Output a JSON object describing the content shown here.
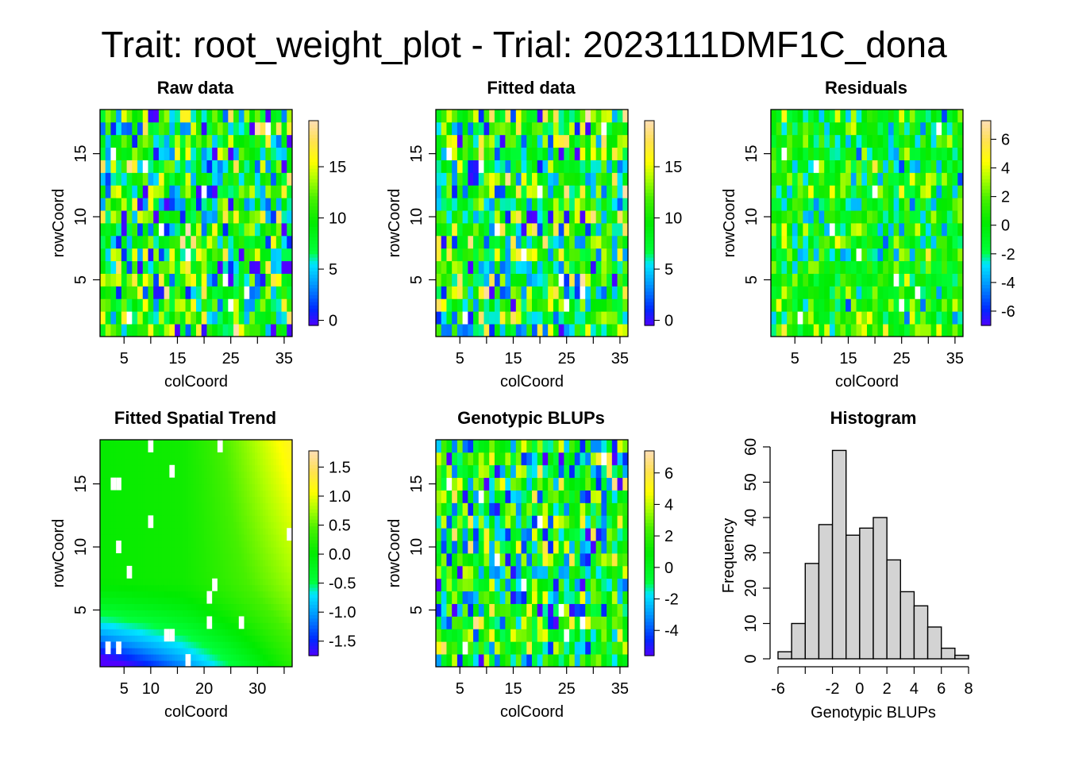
{
  "figure": {
    "title": "Trait: root_weight_plot - Trial: 2023111DMF1C_dona"
  },
  "chart_data": [
    {
      "type": "heatmap",
      "title": "Raw data",
      "xlabel": "colCoord",
      "ylabel": "rowCoord",
      "x_ticks": [
        "5",
        "15",
        "25",
        "35"
      ],
      "y_ticks": [
        "5",
        "10",
        "15"
      ],
      "xlim": [
        0.5,
        36.5
      ],
      "ylim": [
        0.5,
        18.5
      ],
      "colorbar_ticks": [
        "0",
        "5",
        "10",
        "15"
      ],
      "colorbar_range": [
        -0.5,
        19.5
      ],
      "ncols": 36,
      "nrows": 18,
      "missing_cells": [
        [
          3,
          15
        ],
        [
          17,
          7
        ],
        [
          20,
          12
        ],
        [
          28,
          4
        ],
        [
          32,
          17
        ],
        [
          12,
          9
        ],
        [
          6,
          2
        ],
        [
          24,
          5
        ],
        [
          25,
          3
        ],
        [
          9,
          14
        ]
      ]
    },
    {
      "type": "heatmap",
      "title": "Fitted data",
      "xlabel": "colCoord",
      "ylabel": "rowCoord",
      "x_ticks": [
        "5",
        "15",
        "25",
        "35"
      ],
      "y_ticks": [
        "5",
        "10",
        "15"
      ],
      "xlim": [
        0.5,
        36.5
      ],
      "ylim": [
        0.5,
        18.5
      ],
      "colorbar_ticks": [
        "0",
        "5",
        "10",
        "15"
      ],
      "colorbar_range": [
        -0.5,
        19.5
      ],
      "ncols": 36,
      "nrows": 18,
      "missing_cells": [
        [
          3,
          15
        ],
        [
          17,
          7
        ],
        [
          20,
          12
        ],
        [
          28,
          4
        ],
        [
          32,
          17
        ],
        [
          12,
          9
        ],
        [
          6,
          2
        ],
        [
          24,
          5
        ],
        [
          25,
          3
        ],
        [
          9,
          14
        ]
      ]
    },
    {
      "type": "heatmap",
      "title": "Residuals",
      "xlabel": "colCoord",
      "ylabel": "rowCoord",
      "x_ticks": [
        "5",
        "15",
        "25",
        "35"
      ],
      "y_ticks": [
        "5",
        "10",
        "15"
      ],
      "xlim": [
        0.5,
        36.5
      ],
      "ylim": [
        0.5,
        18.5
      ],
      "colorbar_ticks": [
        "-6",
        "-4",
        "-2",
        "0",
        "2",
        "4",
        "6"
      ],
      "colorbar_range": [
        -7,
        7.3
      ],
      "ncols": 36,
      "nrows": 18,
      "missing_cells": [
        [
          3,
          15
        ],
        [
          17,
          7
        ],
        [
          20,
          12
        ],
        [
          28,
          4
        ],
        [
          32,
          17
        ],
        [
          12,
          9
        ],
        [
          6,
          2
        ],
        [
          24,
          5
        ],
        [
          25,
          3
        ],
        [
          9,
          14
        ]
      ]
    },
    {
      "type": "heatmap",
      "title": "Fitted Spatial Trend",
      "xlabel": "colCoord",
      "ylabel": "rowCoord",
      "x_ticks": [
        "5",
        "10",
        "20",
        "30"
      ],
      "x_tick_values": [
        5,
        10,
        20,
        30
      ],
      "y_ticks": [
        "5",
        "10",
        "15"
      ],
      "xlim": [
        0.5,
        36.5
      ],
      "ylim": [
        0.5,
        18.5
      ],
      "colorbar_ticks": [
        "-1.5",
        "-1.0",
        "-0.5",
        "0.0",
        "0.5",
        "1.0",
        "1.5"
      ],
      "colorbar_range": [
        -1.75,
        1.78
      ],
      "missing_cells": [
        [
          3,
          15
        ],
        [
          4,
          15
        ],
        [
          10,
          18
        ],
        [
          14,
          16
        ],
        [
          10,
          12
        ],
        [
          4,
          10
        ],
        [
          6,
          8
        ],
        [
          36,
          11
        ],
        [
          22,
          7
        ],
        [
          21,
          6
        ],
        [
          2,
          2
        ],
        [
          4,
          2
        ],
        [
          13,
          3
        ],
        [
          14,
          3
        ],
        [
          17,
          1
        ],
        [
          27,
          4
        ],
        [
          21,
          4
        ],
        [
          23,
          18
        ]
      ]
    },
    {
      "type": "heatmap",
      "title": "Genotypic BLUPs",
      "xlabel": "colCoord",
      "ylabel": "rowCoord",
      "x_ticks": [
        "5",
        "15",
        "25",
        "35"
      ],
      "y_ticks": [
        "5",
        "10",
        "15"
      ],
      "xlim": [
        0.5,
        36.5
      ],
      "ylim": [
        0.5,
        18.5
      ],
      "colorbar_ticks": [
        "-4",
        "-2",
        "0",
        "2",
        "4",
        "6"
      ],
      "colorbar_range": [
        -5.6,
        7.4
      ],
      "ncols": 36,
      "nrows": 18,
      "missing_cells": [
        [
          3,
          15
        ],
        [
          17,
          7
        ],
        [
          20,
          12
        ],
        [
          28,
          4
        ],
        [
          32,
          17
        ],
        [
          12,
          9
        ],
        [
          6,
          2
        ],
        [
          24,
          5
        ],
        [
          25,
          3
        ],
        [
          9,
          14
        ]
      ]
    },
    {
      "type": "bar",
      "title": "Histogram",
      "xlabel": "Genotypic BLUPs",
      "ylabel": "Frequency",
      "bin_edges": [
        -6,
        -5,
        -4,
        -3,
        -2,
        -1,
        0,
        1,
        2,
        3,
        4,
        5,
        6,
        7,
        8
      ],
      "values": [
        2,
        10,
        27,
        38,
        59,
        35,
        37,
        40,
        28,
        19,
        15,
        9,
        3,
        1
      ],
      "x_ticks": [
        "-6",
        "-2",
        "0",
        "2",
        "4",
        "6",
        "8"
      ],
      "x_tick_values": [
        -6,
        -2,
        0,
        2,
        4,
        6,
        8
      ],
      "y_ticks": [
        "0",
        "10",
        "20",
        "30",
        "40",
        "50",
        "60"
      ],
      "xlim": [
        -6,
        8
      ],
      "ylim": [
        0,
        60
      ],
      "bar_color": "#d3d3d3"
    }
  ]
}
